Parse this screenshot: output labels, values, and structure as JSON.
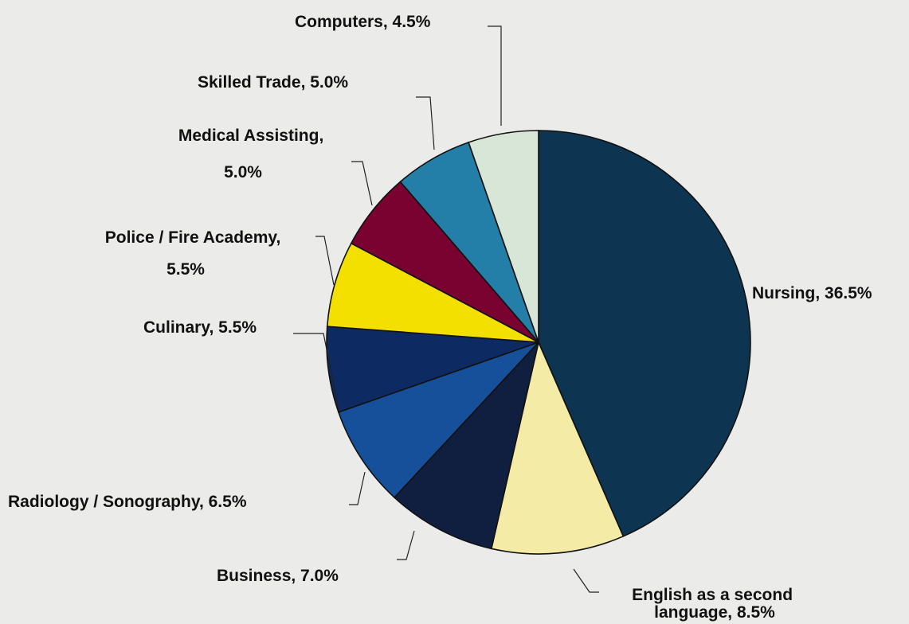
{
  "chart_data": {
    "type": "pie",
    "title": "",
    "slices": [
      {
        "label": "Nursing",
        "value_text": "36.5%",
        "value": 36.5,
        "color": "#0d3450"
      },
      {
        "label": "English as a second language",
        "value_text": "8.5%",
        "value": 8.5,
        "color": "#f3eba6"
      },
      {
        "label": "Business",
        "value_text": "7.0%",
        "value": 7.0,
        "color": "#101f3f"
      },
      {
        "label": "Radiology / Sonography",
        "value_text": "6.5%",
        "value": 6.5,
        "color": "#164f9a"
      },
      {
        "label": "Culinary",
        "value_text": "5.5%",
        "value": 5.5,
        "color": "#0e2a63"
      },
      {
        "label": "Police / Fire Academy",
        "value_text": "5.5%",
        "value": 5.5,
        "color": "#f4e000"
      },
      {
        "label": "Medical Assisting",
        "value_text": "5.0%",
        "value": 5.0,
        "color": "#790231"
      },
      {
        "label": "Skilled Trade",
        "value_text": "5.0%",
        "value": 5.0,
        "color": "#237fa8"
      },
      {
        "label": "Computers",
        "value_text": "4.5%",
        "value": 4.5,
        "color": "#d8e6d8"
      }
    ]
  }
}
